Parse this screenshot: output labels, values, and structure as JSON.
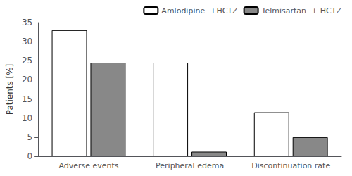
{
  "chart_data": {
    "type": "bar",
    "ylabel": "Patients [%]",
    "categories": [
      "Adverse events",
      "Peripheral edema",
      "Discontinuation rate"
    ],
    "series": [
      {
        "name": "Amlodipine  +HCTZ",
        "color": "#ffffff",
        "values": [
          33.0,
          24.5,
          11.5
        ]
      },
      {
        "name": "Telmisartan  + HCTZ",
        "color": "#888888",
        "values": [
          24.5,
          1.2,
          5.0
        ]
      }
    ],
    "ylim": [
      0,
      35
    ],
    "yticks": [
      0,
      5,
      10,
      15,
      20,
      25,
      30,
      35
    ],
    "grid": false,
    "legend": "upper right"
  }
}
